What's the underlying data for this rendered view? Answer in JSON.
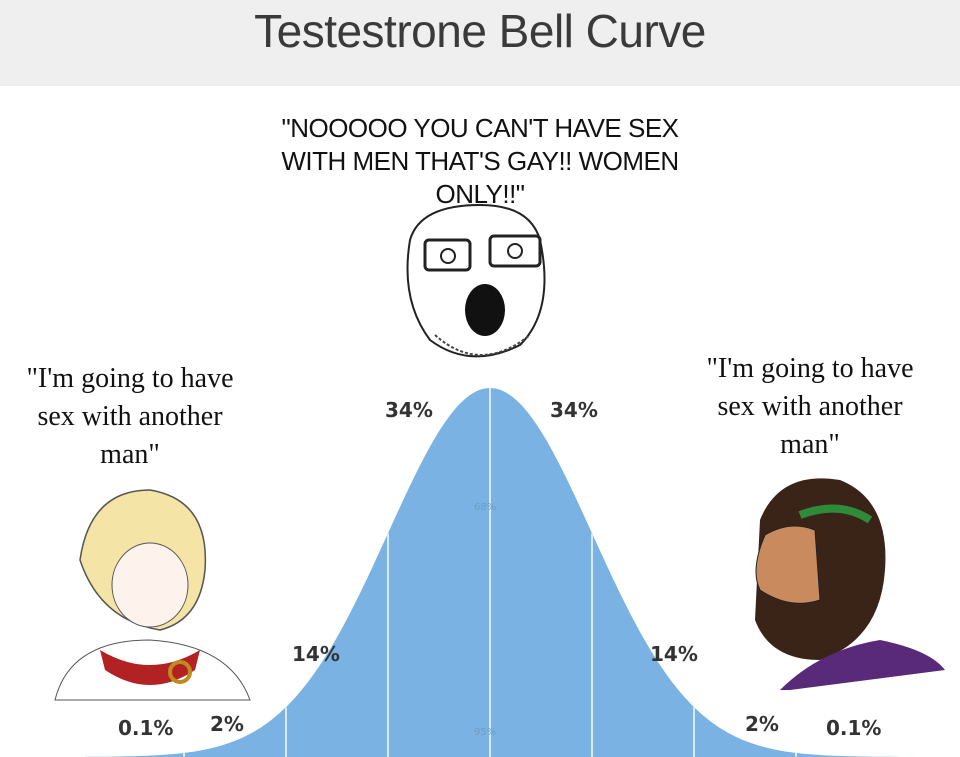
{
  "title": "Testestrone Bell Curve",
  "quotes": {
    "center": "\"NOOOOO YOU CAN'T HAVE SEX WITH MEN THAT'S GAY!! WOMEN ONLY!!\"",
    "left": "\"I'm going to have sex with another man\"",
    "right": "\"I'm going to have sex with another man\""
  },
  "bands": {
    "far_left": "0.1%",
    "left_tail": "2%",
    "left_mid": "14%",
    "left_center": "34%",
    "right_center": "34%",
    "right_mid": "14%",
    "right_tail": "2%",
    "far_right": "0.1%",
    "inner_faint": "68%",
    "outer_faint": "95%"
  },
  "colors": {
    "curve": "#7ab3e3",
    "header": "#efefef"
  },
  "characters": {
    "left": "anime-character",
    "center": "soyjak-face",
    "right": "chad-bearded-man"
  }
}
